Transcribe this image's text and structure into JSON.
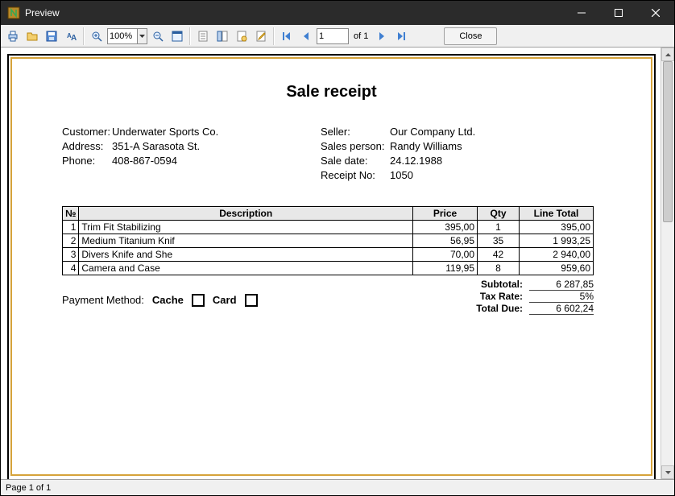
{
  "window": {
    "title": "Preview"
  },
  "toolbar": {
    "zoom_value": "100%",
    "page_value": "1",
    "of_label": "of 1",
    "close_label": "Close"
  },
  "document": {
    "title": "Sale receipt",
    "left": {
      "customer_label": "Customer:",
      "customer": "Underwater Sports Co.",
      "address_label": "Address:",
      "address": "351-A Sarasota St.",
      "phone_label": "Phone:",
      "phone": "408-867-0594"
    },
    "right": {
      "seller_label": "Seller:",
      "seller": "Our Company Ltd.",
      "salesperson_label": "Sales person:",
      "salesperson": "Randy Williams",
      "saledate_label": "Sale date:",
      "saledate": "24.12.1988",
      "receipt_label": "Receipt No:",
      "receipt": "1050"
    },
    "columns": {
      "no": "№",
      "desc": "Description",
      "price": "Price",
      "qty": "Qty",
      "total": "Line Total"
    },
    "rows": [
      {
        "no": "1",
        "desc": "Trim Fit Stabilizing",
        "price": "395,00",
        "qty": "1",
        "total": "395,00"
      },
      {
        "no": "2",
        "desc": "Medium Titanium Knif",
        "price": "56,95",
        "qty": "35",
        "total": "1 993,25"
      },
      {
        "no": "3",
        "desc": "Divers Knife and She",
        "price": "70,00",
        "qty": "42",
        "total": "2 940,00"
      },
      {
        "no": "4",
        "desc": "Camera and Case",
        "price": "119,95",
        "qty": "8",
        "total": "959,60"
      }
    ],
    "payment": {
      "label": "Payment Method:",
      "opt1": "Cache",
      "opt2": "Card"
    },
    "totals": {
      "subtotal_label": "Subtotal:",
      "subtotal": "6 287,85",
      "taxrate_label": "Tax Rate:",
      "taxrate": "5%",
      "totaldue_label": "Total Due:",
      "totaldue": "6 602,24"
    }
  },
  "status": {
    "text": "Page 1 of 1"
  }
}
